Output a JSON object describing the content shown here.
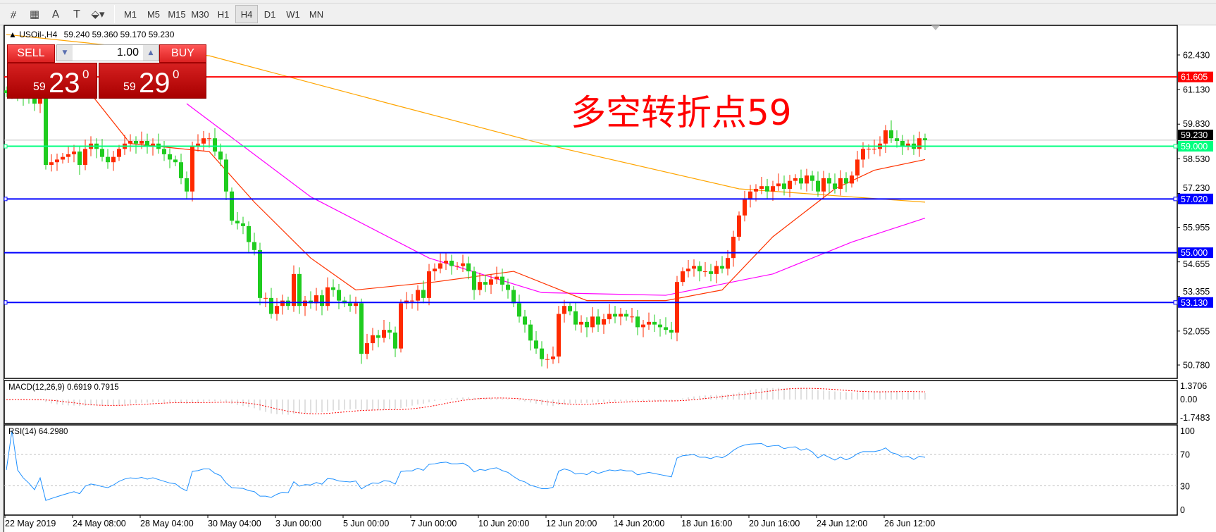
{
  "toolbar": {
    "tools": [
      {
        "icon": "fibonacci-expansion-icon",
        "glyph": "⧣"
      },
      {
        "icon": "fibonacci-fan-icon",
        "glyph": "▦"
      },
      {
        "icon": "text-icon",
        "glyph": "A"
      },
      {
        "icon": "text-label-icon",
        "glyph": "T"
      },
      {
        "icon": "arrows-icon",
        "glyph": "⬙▾"
      }
    ],
    "timeframes": [
      "M1",
      "M5",
      "M15",
      "M30",
      "H1",
      "H4",
      "D1",
      "W1",
      "MN"
    ],
    "active_timeframe": "H4"
  },
  "chart_header": {
    "symbol": "USOil-,H4",
    "ohlc": "59.240 59.360 59.170 59.230"
  },
  "trade_panel": {
    "sell_label": "SELL",
    "buy_label": "BUY",
    "lot": "1.00",
    "sell": {
      "prefix": "59",
      "big": "23",
      "sup": "0"
    },
    "buy": {
      "prefix": "59",
      "big": "29",
      "sup": "0"
    }
  },
  "annotation": "多空转折点59",
  "chart_data": [
    {
      "type": "candlestick",
      "title": "USOil-,H4",
      "ylim": [
        50.78,
        62.43
      ],
      "y_ticks": [
        "62.430",
        "61.130",
        "59.830",
        "58.530",
        "57.230",
        "55.955",
        "54.655",
        "53.355",
        "52.055",
        "50.780"
      ],
      "x_ticks": [
        "22 May 2019",
        "24 May 08:00",
        "28 May 04:00",
        "30 May 04:00",
        "3 Jun 00:00",
        "5 Jun 00:00",
        "7 Jun 00:00",
        "10 Jun 20:00",
        "12 Jun 20:00",
        "14 Jun 20:00",
        "18 Jun 16:00",
        "20 Jun 16:00",
        "24 Jun 12:00",
        "26 Jun 12:00"
      ],
      "closes": [
        61.0,
        61.2,
        61.0,
        60.9,
        60.8,
        60.6,
        60.8,
        58.3,
        58.4,
        58.5,
        58.6,
        58.7,
        58.8,
        58.3,
        58.9,
        59.1,
        58.9,
        58.6,
        58.4,
        58.6,
        58.9,
        59.1,
        59.2,
        59.1,
        59.2,
        59.0,
        59.1,
        58.9,
        58.7,
        58.5,
        58.4,
        57.8,
        57.3,
        59.0,
        59.1,
        59.3,
        59.3,
        58.8,
        58.5,
        57.3,
        56.2,
        56.1,
        56.0,
        55.4,
        55.1,
        53.3,
        53.3,
        52.7,
        53.0,
        53.2,
        53.0,
        54.2,
        53.0,
        53.2,
        53.1,
        53.4,
        53.0,
        53.7,
        53.6,
        53.2,
        53.1,
        53.0,
        53.1,
        51.2,
        51.6,
        51.9,
        51.8,
        52.1,
        52.0,
        51.4,
        53.1,
        53.2,
        53.2,
        53.6,
        53.3,
        54.3,
        54.4,
        54.6,
        54.7,
        54.5,
        54.5,
        54.6,
        54.3,
        53.6,
        53.9,
        53.8,
        54.0,
        54.1,
        53.8,
        53.6,
        53.1,
        52.6,
        52.3,
        51.7,
        51.4,
        51.0,
        51.0,
        51.1,
        52.7,
        53.0,
        52.8,
        52.3,
        52.4,
        52.2,
        52.6,
        52.3,
        52.5,
        52.7,
        52.6,
        52.7,
        52.6,
        52.6,
        52.2,
        52.3,
        52.4,
        52.3,
        52.2,
        52.1,
        52.0,
        53.9,
        54.3,
        54.4,
        54.5,
        54.3,
        54.3,
        54.2,
        54.5,
        54.4,
        54.8,
        55.6,
        56.4,
        57.0,
        57.3,
        57.4,
        57.5,
        57.3,
        57.5,
        57.6,
        57.4,
        57.7,
        57.8,
        57.6,
        57.9,
        57.7,
        57.3,
        57.8,
        57.6,
        57.4,
        57.8,
        57.6,
        57.9,
        58.5,
        58.9,
        58.9,
        58.9,
        59.1,
        59.6,
        59.3,
        59.2,
        59.0,
        59.1,
        58.9,
        59.3,
        59.23
      ],
      "moving_averages": [
        {
          "color": "#ffa500",
          "points": [
            [
              0,
              63.2
            ],
            [
              36,
              62.4
            ],
            [
              68,
              60.6
            ],
            [
              95,
              59.1
            ],
            [
              130,
              57.4
            ],
            [
              163,
              56.9
            ]
          ]
        },
        {
          "color": "#ff00ff",
          "points": [
            [
              32,
              60.6
            ],
            [
              54,
              57.1
            ],
            [
              75,
              54.8
            ],
            [
              95,
              53.5
            ],
            [
              117,
              53.4
            ],
            [
              136,
              54.2
            ],
            [
              150,
              55.4
            ],
            [
              163,
              56.3
            ]
          ]
        },
        {
          "color": "#ff3300",
          "points": [
            [
              13,
              61.5
            ],
            [
              22,
              59.1
            ],
            [
              36,
              58.8
            ],
            [
              44,
              56.9
            ],
            [
              54,
              54.8
            ],
            [
              62,
              53.6
            ],
            [
              76,
              53.9
            ],
            [
              90,
              54.3
            ],
            [
              103,
              53.2
            ],
            [
              117,
              53.2
            ],
            [
              127,
              53.6
            ],
            [
              136,
              55.6
            ],
            [
              147,
              57.4
            ],
            [
              154,
              58.1
            ],
            [
              163,
              58.5
            ]
          ]
        }
      ],
      "levels": [
        {
          "value": 61.605,
          "label": "61.605",
          "color": "#ff0000"
        },
        {
          "value": 59.0,
          "label": "59.000",
          "color": "#00ff7f"
        },
        {
          "value": 57.02,
          "label": "57.020",
          "color": "#0000ff"
        },
        {
          "value": 55.0,
          "label": "55.000",
          "color": "#0000ff"
        },
        {
          "value": 53.13,
          "label": "53.130",
          "color": "#0000ff"
        }
      ],
      "current_price": {
        "value": 59.23,
        "label": "59.230"
      },
      "bull_color": "#ff2a00",
      "bear_color": "#1fcc1f"
    },
    {
      "type": "bar",
      "title": "MACD(12,26,9) 0.6919 0.7915",
      "y_ticks": [
        "1.3706",
        "0.00",
        "-1.7483"
      ],
      "ylim": [
        -1.7483,
        1.3706
      ]
    },
    {
      "type": "line",
      "title": "RSI(14) 64.2980",
      "y_ticks": [
        "100",
        "70",
        "30",
        "0"
      ],
      "ylim": [
        0,
        100
      ],
      "levels": [
        70,
        30
      ]
    }
  ]
}
